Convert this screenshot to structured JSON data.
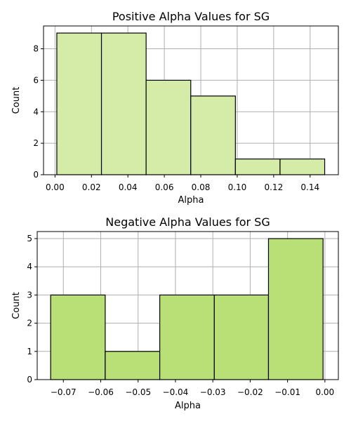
{
  "chart_data": [
    {
      "type": "bar",
      "title": "Positive Alpha Values for SG",
      "xlabel": "Alpha",
      "ylabel": "Count",
      "xlim": [
        -0.0063,
        0.1555
      ],
      "ylim": [
        0,
        9.45
      ],
      "xticks": [
        0.0,
        0.02,
        0.04,
        0.06,
        0.08,
        0.1,
        0.12,
        0.14
      ],
      "xtick_labels": [
        "0.00",
        "0.02",
        "0.04",
        "0.06",
        "0.08",
        "0.10",
        "0.12",
        "0.14"
      ],
      "yticks": [
        0,
        2,
        4,
        6,
        8
      ],
      "ytick_labels": [
        "0",
        "2",
        "4",
        "6",
        "8"
      ],
      "grid": true,
      "bar_color": "#d4eca8",
      "bins": [
        {
          "x0": 0.001,
          "x1": 0.0255,
          "value": 9
        },
        {
          "x0": 0.0255,
          "x1": 0.05,
          "value": 9
        },
        {
          "x0": 0.05,
          "x1": 0.0745,
          "value": 6
        },
        {
          "x0": 0.0745,
          "x1": 0.099,
          "value": 5
        },
        {
          "x0": 0.099,
          "x1": 0.1235,
          "value": 1
        },
        {
          "x0": 0.1235,
          "x1": 0.148,
          "value": 1
        }
      ]
    },
    {
      "type": "bar",
      "title": "Negative Alpha Values for SG",
      "xlabel": "Alpha",
      "ylabel": "Count",
      "xlim": [
        -0.077,
        0.0036
      ],
      "ylim": [
        0,
        5.25
      ],
      "xticks": [
        -0.07,
        -0.06,
        -0.05,
        -0.04,
        -0.03,
        -0.02,
        -0.01,
        0.0
      ],
      "xtick_labels": [
        "−0.07",
        "−0.06",
        "−0.05",
        "−0.04",
        "−0.03",
        "−0.02",
        "−0.01",
        "0.00"
      ],
      "yticks": [
        0,
        1,
        2,
        3,
        4,
        5
      ],
      "ytick_labels": [
        "0",
        "1",
        "2",
        "3",
        "4",
        "5"
      ],
      "grid": true,
      "bar_color": "#b9df77",
      "bins": [
        {
          "x0": -0.0734,
          "x1": -0.0588,
          "value": 3
        },
        {
          "x0": -0.0588,
          "x1": -0.0442,
          "value": 1
        },
        {
          "x0": -0.0442,
          "x1": -0.0296,
          "value": 3
        },
        {
          "x0": -0.0296,
          "x1": -0.0151,
          "value": 3
        },
        {
          "x0": -0.0151,
          "x1": -0.0005,
          "value": 5
        }
      ]
    }
  ]
}
